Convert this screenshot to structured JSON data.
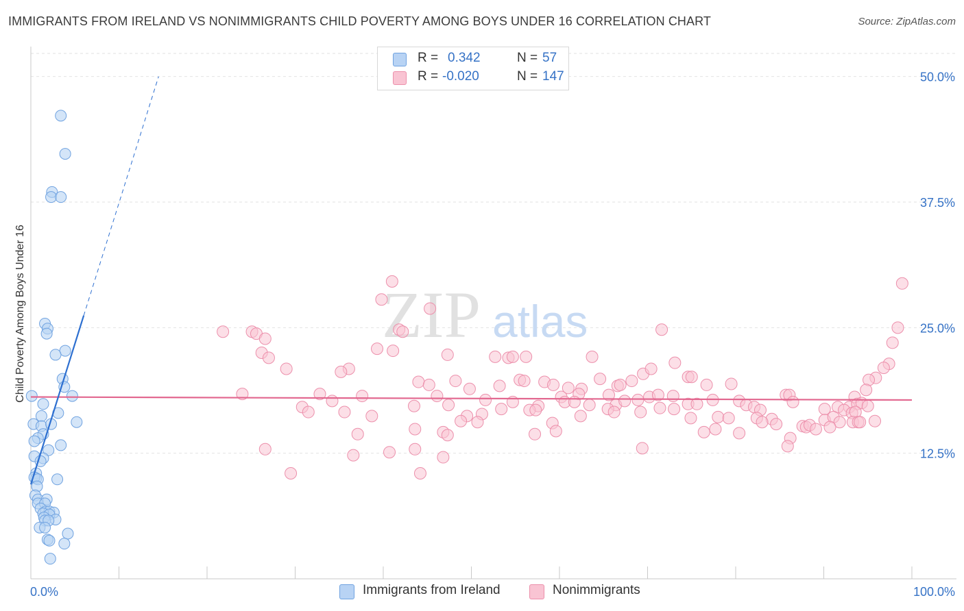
{
  "title": "IMMIGRANTS FROM IRELAND VS NONIMMIGRANTS CHILD POVERTY AMONG BOYS UNDER 16 CORRELATION CHART",
  "source": "Source: ZipAtlas.com",
  "watermark": {
    "zip": "ZIP",
    "atlas": "atlas"
  },
  "legend": {
    "r_label": "R =",
    "n_label": "N =",
    "rows": [
      {
        "r": "0.342",
        "n": "57",
        "fill": "#b8d3f4",
        "stroke": "#6fa2e0"
      },
      {
        "r": "-0.020",
        "n": "147",
        "fill": "#f9c4d3",
        "stroke": "#ec8fab"
      }
    ]
  },
  "bottom_legend": [
    "Immigrants from Ireland",
    "Nonimmigrants"
  ],
  "chart_data": {
    "type": "scatter",
    "title": "IMMIGRANTS FROM IRELAND VS NONIMMIGRANTS CHILD POVERTY AMONG BOYS UNDER 16 CORRELATION CHART",
    "xlabel": "",
    "ylabel": "Child Poverty Among Boys Under 16",
    "xlim": [
      0,
      100
    ],
    "ylim": [
      0,
      52.5
    ],
    "x_tick_labels": [
      "0.0%",
      "100.0%"
    ],
    "y_ticks": [
      12.5,
      25.0,
      37.5,
      50.0
    ],
    "y_tick_labels": [
      "12.5%",
      "25.0%",
      "37.5%",
      "50.0%"
    ],
    "grid": true,
    "colors": {
      "ireland_fill": "#b8d3f4",
      "ireland_stroke": "#6fa2e0",
      "ireland_line": "#2d6fd0",
      "non_fill": "#f9c4d3",
      "non_stroke": "#ec8fab",
      "non_line": "#e2678f",
      "axis_label": "#3572c6",
      "grid": "#e2e2e2"
    },
    "series": [
      {
        "name": "Immigrants from Ireland",
        "points": [
          [
            3.4,
            46.1
          ],
          [
            3.9,
            42.3
          ],
          [
            2.4,
            38.5
          ],
          [
            2.3,
            38.0
          ],
          [
            3.4,
            38.0
          ],
          [
            1.6,
            25.4
          ],
          [
            1.9,
            24.9
          ],
          [
            1.8,
            24.4
          ],
          [
            3.9,
            22.7
          ],
          [
            2.8,
            22.3
          ],
          [
            3.6,
            19.9
          ],
          [
            3.8,
            19.1
          ],
          [
            4.7,
            18.2
          ],
          [
            0.1,
            18.2
          ],
          [
            1.4,
            17.4
          ],
          [
            3.1,
            16.5
          ],
          [
            1.2,
            16.2
          ],
          [
            0.3,
            15.4
          ],
          [
            1.2,
            15.2
          ],
          [
            2.3,
            15.4
          ],
          [
            5.2,
            15.6
          ],
          [
            1.4,
            14.4
          ],
          [
            0.8,
            14.0
          ],
          [
            0.4,
            13.7
          ],
          [
            3.4,
            13.3
          ],
          [
            2.0,
            12.8
          ],
          [
            1.4,
            12.0
          ],
          [
            0.4,
            12.2
          ],
          [
            1.1,
            11.7
          ],
          [
            0.6,
            10.5
          ],
          [
            0.6,
            10.0
          ],
          [
            0.4,
            10.1
          ],
          [
            0.8,
            9.9
          ],
          [
            3.0,
            9.9
          ],
          [
            0.7,
            9.2
          ],
          [
            0.5,
            8.3
          ],
          [
            0.8,
            7.9
          ],
          [
            1.8,
            7.9
          ],
          [
            0.8,
            7.5
          ],
          [
            1.6,
            7.5
          ],
          [
            1.1,
            7.0
          ],
          [
            1.7,
            6.7
          ],
          [
            2.1,
            6.7
          ],
          [
            2.6,
            6.6
          ],
          [
            1.4,
            6.5
          ],
          [
            2.1,
            6.4
          ],
          [
            1.5,
            6.1
          ],
          [
            2.8,
            5.9
          ],
          [
            1.6,
            5.8
          ],
          [
            2.0,
            5.8
          ],
          [
            1.0,
            5.1
          ],
          [
            1.6,
            5.1
          ],
          [
            4.2,
            4.5
          ],
          [
            1.9,
            3.9
          ],
          [
            2.1,
            3.8
          ],
          [
            3.8,
            3.5
          ],
          [
            2.2,
            2.0
          ]
        ]
      },
      {
        "name": "Nonimmigrants",
        "points": [
          [
            98.9,
            29.4
          ],
          [
            41.0,
            29.6
          ],
          [
            39.8,
            27.8
          ],
          [
            45.3,
            26.9
          ],
          [
            98.4,
            25.0
          ],
          [
            71.6,
            24.8
          ],
          [
            21.8,
            24.6
          ],
          [
            25.1,
            24.6
          ],
          [
            25.6,
            24.4
          ],
          [
            26.6,
            23.9
          ],
          [
            41.8,
            24.8
          ],
          [
            42.2,
            24.6
          ],
          [
            97.8,
            23.5
          ],
          [
            39.3,
            22.9
          ],
          [
            41.1,
            22.7
          ],
          [
            47.3,
            22.3
          ],
          [
            26.2,
            22.5
          ],
          [
            27.0,
            22.0
          ],
          [
            52.7,
            22.1
          ],
          [
            54.2,
            22.0
          ],
          [
            54.7,
            22.1
          ],
          [
            56.2,
            22.1
          ],
          [
            63.7,
            22.1
          ],
          [
            73.1,
            21.5
          ],
          [
            97.4,
            21.4
          ],
          [
            96.8,
            21.0
          ],
          [
            29.0,
            20.9
          ],
          [
            36.1,
            20.9
          ],
          [
            35.2,
            20.6
          ],
          [
            69.5,
            20.4
          ],
          [
            70.4,
            20.9
          ],
          [
            74.6,
            20.1
          ],
          [
            75.0,
            20.1
          ],
          [
            95.9,
            20.0
          ],
          [
            95.1,
            19.8
          ],
          [
            44.0,
            19.6
          ],
          [
            48.2,
            19.7
          ],
          [
            55.5,
            19.8
          ],
          [
            56.0,
            19.7
          ],
          [
            58.3,
            19.6
          ],
          [
            64.6,
            19.9
          ],
          [
            66.6,
            19.2
          ],
          [
            66.9,
            19.3
          ],
          [
            68.2,
            19.7
          ],
          [
            76.7,
            19.3
          ],
          [
            79.5,
            19.4
          ],
          [
            45.2,
            19.3
          ],
          [
            59.3,
            19.3
          ],
          [
            53.2,
            19.2
          ],
          [
            49.8,
            18.9
          ],
          [
            61.0,
            19.0
          ],
          [
            62.5,
            18.9
          ],
          [
            94.8,
            18.8
          ],
          [
            24.0,
            18.4
          ],
          [
            32.8,
            18.4
          ],
          [
            37.6,
            18.2
          ],
          [
            46.1,
            18.2
          ],
          [
            60.2,
            18.1
          ],
          [
            62.2,
            18.4
          ],
          [
            65.6,
            18.3
          ],
          [
            70.2,
            18.1
          ],
          [
            71.2,
            18.3
          ],
          [
            72.9,
            18.2
          ],
          [
            85.7,
            18.3
          ],
          [
            86.1,
            18.3
          ],
          [
            93.5,
            18.1
          ],
          [
            34.2,
            17.7
          ],
          [
            43.5,
            17.2
          ],
          [
            47.4,
            17.3
          ],
          [
            51.6,
            17.8
          ],
          [
            54.7,
            17.6
          ],
          [
            57.6,
            17.2
          ],
          [
            60.6,
            17.6
          ],
          [
            61.7,
            17.6
          ],
          [
            63.4,
            17.3
          ],
          [
            66.4,
            17.3
          ],
          [
            67.4,
            17.7
          ],
          [
            68.9,
            17.8
          ],
          [
            74.6,
            17.4
          ],
          [
            75.6,
            17.4
          ],
          [
            77.4,
            17.8
          ],
          [
            80.4,
            17.7
          ],
          [
            81.2,
            17.3
          ],
          [
            82.1,
            17.1
          ],
          [
            86.5,
            17.6
          ],
          [
            91.6,
            17.1
          ],
          [
            92.9,
            17.1
          ],
          [
            93.8,
            17.4
          ],
          [
            94.3,
            17.5
          ],
          [
            95.0,
            17.2
          ],
          [
            30.8,
            17.1
          ],
          [
            31.5,
            16.6
          ],
          [
            35.6,
            16.6
          ],
          [
            38.7,
            16.2
          ],
          [
            49.5,
            16.2
          ],
          [
            51.2,
            16.4
          ],
          [
            53.4,
            16.9
          ],
          [
            56.6,
            16.8
          ],
          [
            57.3,
            16.8
          ],
          [
            65.5,
            16.9
          ],
          [
            66.2,
            16.6
          ],
          [
            69.2,
            16.6
          ],
          [
            71.4,
            17.0
          ],
          [
            73.0,
            16.9
          ],
          [
            82.8,
            16.8
          ],
          [
            90.1,
            16.9
          ],
          [
            92.3,
            16.8
          ],
          [
            93.2,
            16.5
          ],
          [
            93.6,
            16.6
          ],
          [
            62.4,
            16.2
          ],
          [
            74.9,
            16.0
          ],
          [
            78.0,
            16.1
          ],
          [
            79.2,
            16.0
          ],
          [
            82.4,
            16.0
          ],
          [
            84.1,
            15.9
          ],
          [
            90.1,
            15.8
          ],
          [
            91.1,
            16.1
          ],
          [
            91.8,
            15.6
          ],
          [
            93.3,
            15.6
          ],
          [
            93.9,
            15.6
          ],
          [
            94.1,
            15.6
          ],
          [
            95.8,
            15.7
          ],
          [
            48.8,
            15.7
          ],
          [
            50.7,
            15.6
          ],
          [
            59.2,
            15.5
          ],
          [
            83.0,
            15.6
          ],
          [
            84.6,
            15.4
          ],
          [
            87.6,
            15.2
          ],
          [
            88.0,
            15.1
          ],
          [
            88.4,
            15.3
          ],
          [
            89.1,
            14.9
          ],
          [
            90.7,
            15.1
          ],
          [
            43.6,
            14.9
          ],
          [
            37.1,
            14.4
          ],
          [
            46.8,
            14.6
          ],
          [
            57.2,
            14.4
          ],
          [
            59.6,
            14.7
          ],
          [
            76.4,
            14.6
          ],
          [
            77.7,
            14.9
          ],
          [
            80.4,
            14.5
          ],
          [
            47.3,
            14.3
          ],
          [
            86.2,
            14.0
          ],
          [
            85.9,
            13.2
          ],
          [
            69.4,
            13.0
          ],
          [
            26.6,
            12.9
          ],
          [
            40.7,
            12.6
          ],
          [
            43.6,
            12.9
          ],
          [
            36.6,
            12.3
          ],
          [
            46.8,
            12.1
          ],
          [
            44.2,
            10.5
          ],
          [
            29.5,
            10.5
          ]
        ]
      }
    ],
    "trend_lines": [
      {
        "series": "Immigrants from Ireland",
        "solid": [
          [
            0.0,
            9.4
          ],
          [
            6.0,
            26.2
          ]
        ],
        "dashed": [
          [
            6.0,
            26.2
          ],
          [
            14.5,
            50.0
          ]
        ]
      },
      {
        "series": "Nonimmigrants",
        "solid": [
          [
            0.0,
            18.1
          ],
          [
            100.0,
            17.8
          ]
        ]
      }
    ]
  }
}
